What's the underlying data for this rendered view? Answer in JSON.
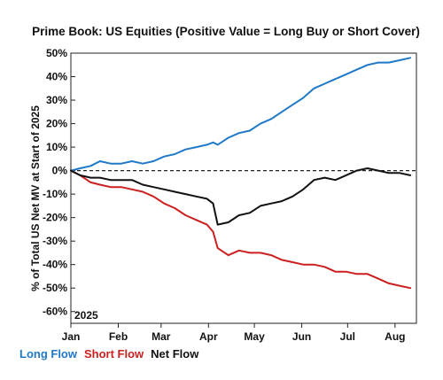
{
  "chart_data": {
    "type": "line",
    "title": "Prime Book: US Equities (Positive Value = Long Buy or Short Cover)",
    "ylabel": "% of Total US Net MV at Start of 2025",
    "xlabel": "",
    "year_label": "2025",
    "x_ticks": [
      "Jan",
      "Feb",
      "Mar",
      "Apr",
      "May",
      "Jun",
      "Jul",
      "Aug"
    ],
    "y_ticks": [
      "50%",
      "40%",
      "30%",
      "20%",
      "10%",
      "0%",
      "-10%",
      "-20%",
      "-30%",
      "-40%",
      "-50%",
      "-60%"
    ],
    "y_tick_values": [
      50,
      40,
      30,
      20,
      10,
      0,
      -10,
      -20,
      -30,
      -40,
      -50,
      -60
    ],
    "ylim": [
      -65,
      50
    ],
    "reference_line": 0,
    "legend_position": "bottom-left",
    "x": [
      "2025-01-01",
      "2025-01-07",
      "2025-01-14",
      "2025-01-20",
      "2025-01-27",
      "2025-02-03",
      "2025-02-10",
      "2025-02-17",
      "2025-02-24",
      "2025-03-03",
      "2025-03-10",
      "2025-03-17",
      "2025-03-24",
      "2025-03-31",
      "2025-04-04",
      "2025-04-07",
      "2025-04-14",
      "2025-04-21",
      "2025-04-28",
      "2025-05-05",
      "2025-05-12",
      "2025-05-19",
      "2025-05-26",
      "2025-06-02",
      "2025-06-09",
      "2025-06-16",
      "2025-06-23",
      "2025-06-30",
      "2025-07-07",
      "2025-07-14",
      "2025-07-21",
      "2025-07-28",
      "2025-08-04",
      "2025-08-11"
    ],
    "series": [
      {
        "name": "Long Flow",
        "color": "#1f78c8",
        "values": [
          0,
          1,
          2,
          4,
          3,
          3,
          4,
          3,
          4,
          6,
          7,
          9,
          10,
          11,
          12,
          11,
          14,
          16,
          17,
          20,
          22,
          25,
          28,
          31,
          35,
          37,
          39,
          41,
          43,
          45,
          46,
          46,
          47,
          48
        ]
      },
      {
        "name": "Short Flow",
        "color": "#cc1f1f",
        "values": [
          0,
          -2,
          -5,
          -6,
          -7,
          -7,
          -8,
          -9,
          -11,
          -14,
          -16,
          -19,
          -21,
          -23,
          -26,
          -33,
          -36,
          -34,
          -35,
          -35,
          -36,
          -38,
          -39,
          -40,
          -40,
          -41,
          -43,
          -43,
          -44,
          -44,
          -46,
          -48,
          -49,
          -50
        ]
      },
      {
        "name": "Net Flow",
        "color": "#111111",
        "values": [
          0,
          -2,
          -3,
          -3,
          -4,
          -4,
          -4,
          -6,
          -7,
          -8,
          -9,
          -10,
          -11,
          -12,
          -14,
          -23,
          -22,
          -19,
          -18,
          -15,
          -14,
          -13,
          -11,
          -8,
          -4,
          -3,
          -4,
          -2,
          0,
          1,
          0,
          -1,
          -1,
          -2
        ]
      }
    ]
  }
}
